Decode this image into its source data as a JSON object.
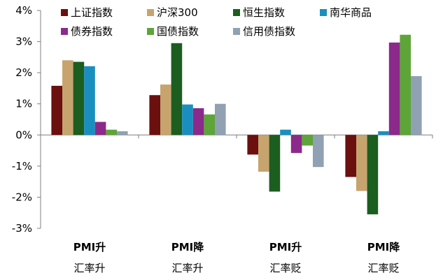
{
  "chart_data": {
    "type": "bar",
    "title": "",
    "xlabel": "",
    "ylabel": "",
    "ylim": [
      -3,
      4
    ],
    "yticks": [
      "4%",
      "3%",
      "2%",
      "1%",
      "0%",
      "-1%",
      "-2%",
      "-3%"
    ],
    "ytick_values": [
      4,
      3,
      2,
      1,
      0,
      -1,
      -2,
      -3
    ],
    "grid": false,
    "legend_position": "top",
    "categories": [
      {
        "line1": "PMI升",
        "line2": "汇率升"
      },
      {
        "line1": "PMI降",
        "line2": "汇率升"
      },
      {
        "line1": "PMI升",
        "line2": "汇率贬"
      },
      {
        "line1": "PMI降",
        "line2": "汇率贬"
      }
    ],
    "series": [
      {
        "name": "上证指数",
        "color": "#6b0f0f",
        "values": [
          1.58,
          1.28,
          -0.63,
          -1.35
        ]
      },
      {
        "name": "沪深300",
        "color": "#c7a46e",
        "values": [
          2.4,
          1.62,
          -1.18,
          -1.8
        ]
      },
      {
        "name": "恒生指数",
        "color": "#1b5e20",
        "values": [
          2.35,
          2.95,
          -1.82,
          -2.55
        ]
      },
      {
        "name": "南华商品",
        "color": "#1a8fbf",
        "values": [
          2.21,
          0.98,
          0.17,
          0.12
        ]
      },
      {
        "name": "债券指数",
        "color": "#8b2a8b",
        "values": [
          0.42,
          0.86,
          -0.58,
          2.97
        ]
      },
      {
        "name": "国债指数",
        "color": "#5da538",
        "values": [
          0.17,
          0.66,
          -0.34,
          3.22
        ]
      },
      {
        "name": "信用债指数",
        "color": "#8fa1b3",
        "values": [
          0.12,
          1.0,
          -1.03,
          1.89
        ]
      }
    ]
  }
}
